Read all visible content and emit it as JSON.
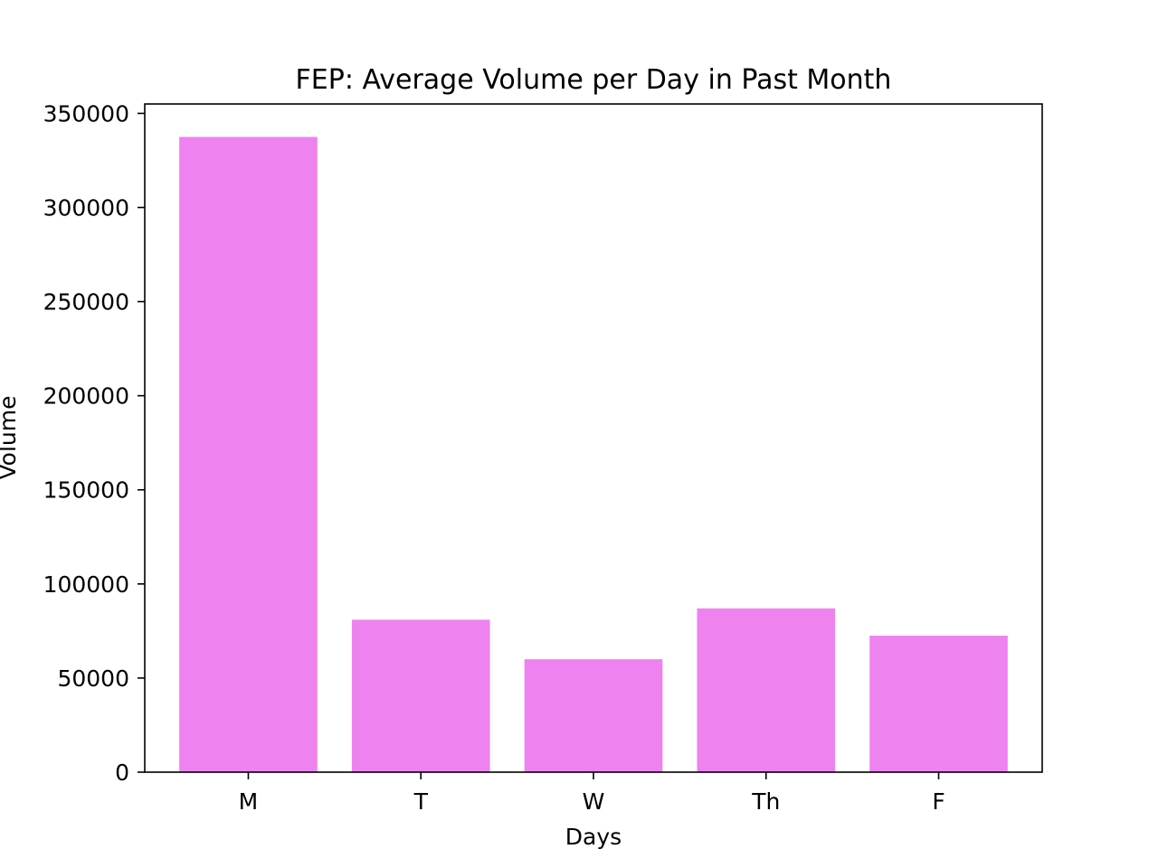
{
  "chart_data": {
    "type": "bar",
    "title": "FEP: Average Volume per Day in Past Month",
    "xlabel": "Days",
    "ylabel": "Volume",
    "categories": [
      "M",
      "T",
      "W",
      "Th",
      "F"
    ],
    "values": [
      337500,
      81000,
      60000,
      87000,
      72500
    ],
    "bar_color": "#ee82ee",
    "ylim": [
      0,
      355000
    ],
    "yticks": [
      0,
      50000,
      100000,
      150000,
      200000,
      250000,
      300000,
      350000
    ],
    "ytick_labels": [
      "0",
      "50000",
      "100000",
      "150000",
      "200000",
      "250000",
      "300000",
      "350000"
    ],
    "grid": false,
    "legend": "none"
  }
}
